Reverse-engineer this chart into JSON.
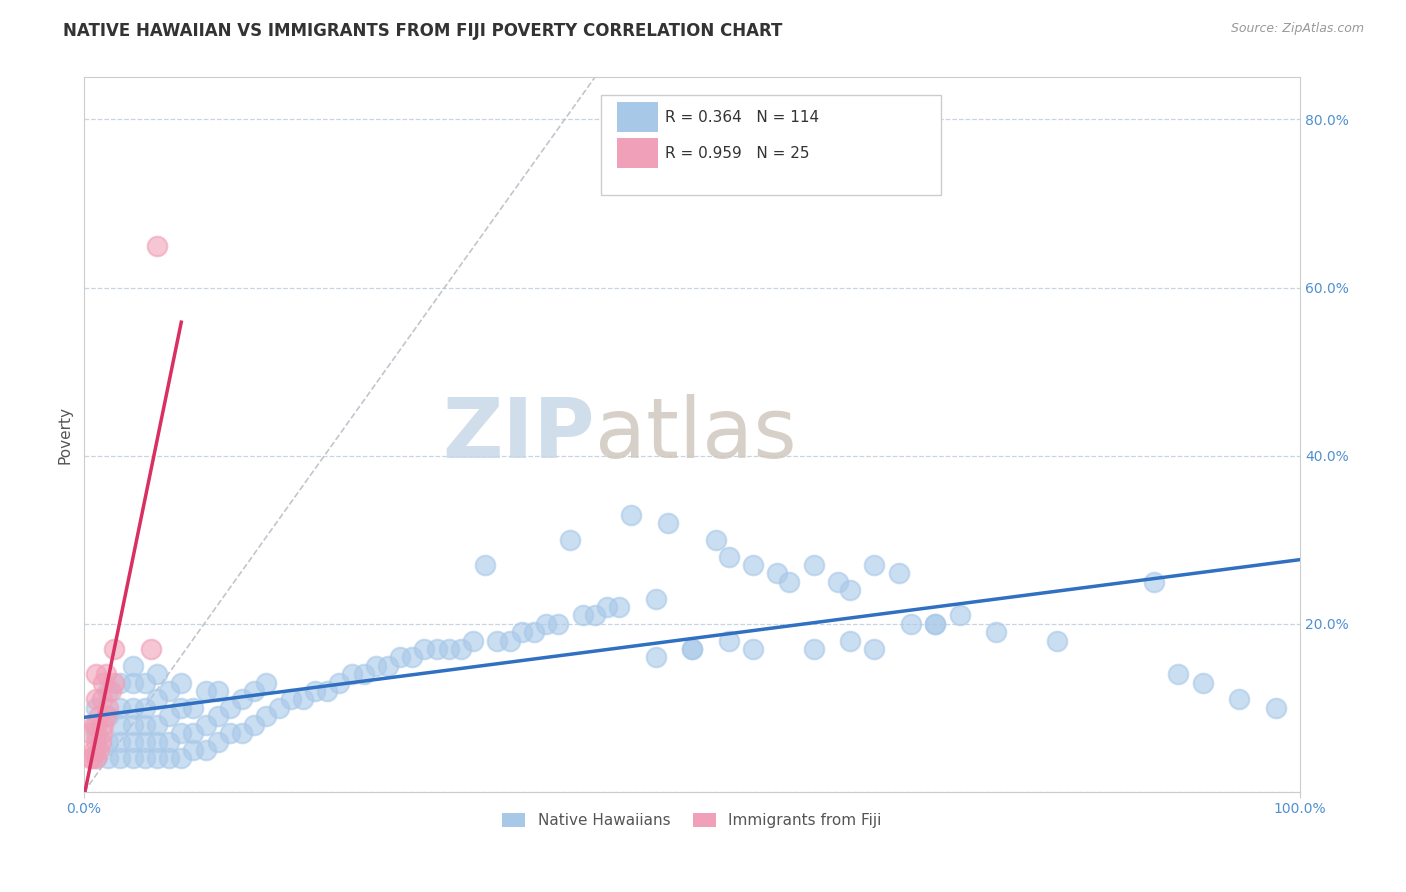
{
  "title": "NATIVE HAWAIIAN VS IMMIGRANTS FROM FIJI POVERTY CORRELATION CHART",
  "source": "Source: ZipAtlas.com",
  "ylabel": "Poverty",
  "watermark_zip": "ZIP",
  "watermark_atlas": "atlas",
  "xlim": [
    0.0,
    1.0
  ],
  "ylim": [
    0.0,
    0.85
  ],
  "xticks": [
    0.0,
    0.2,
    0.4,
    0.6,
    0.8,
    1.0
  ],
  "xtick_labels": [
    "0.0%",
    "",
    "",
    "",
    "",
    "100.0%"
  ],
  "yticks": [
    0.0,
    0.2,
    0.4,
    0.6,
    0.8
  ],
  "ytick_labels": [
    "",
    "20.0%",
    "40.0%",
    "60.0%",
    "80.0%"
  ],
  "blue_R": 0.364,
  "blue_N": 114,
  "pink_R": 0.959,
  "pink_N": 25,
  "blue_color": "#a8c8e8",
  "pink_color": "#f0a0b8",
  "blue_line_color": "#3070c0",
  "pink_line_color": "#d83060",
  "gray_dash_color": "#b0b8c0",
  "tick_color": "#5090d0",
  "legend_labels": [
    "Native Hawaiians",
    "Immigrants from Fiji"
  ],
  "background_color": "#ffffff",
  "grid_color": "#c8d4e0",
  "title_fontsize": 12,
  "axis_fontsize": 10,
  "blue_scatter_x": [
    0.01,
    0.01,
    0.01,
    0.02,
    0.02,
    0.02,
    0.02,
    0.03,
    0.03,
    0.03,
    0.03,
    0.03,
    0.04,
    0.04,
    0.04,
    0.04,
    0.04,
    0.04,
    0.05,
    0.05,
    0.05,
    0.05,
    0.05,
    0.06,
    0.06,
    0.06,
    0.06,
    0.06,
    0.07,
    0.07,
    0.07,
    0.07,
    0.08,
    0.08,
    0.08,
    0.08,
    0.09,
    0.09,
    0.09,
    0.1,
    0.1,
    0.1,
    0.11,
    0.11,
    0.11,
    0.12,
    0.12,
    0.13,
    0.13,
    0.14,
    0.14,
    0.15,
    0.15,
    0.16,
    0.17,
    0.18,
    0.19,
    0.2,
    0.21,
    0.22,
    0.23,
    0.24,
    0.25,
    0.26,
    0.27,
    0.28,
    0.29,
    0.3,
    0.31,
    0.32,
    0.33,
    0.34,
    0.35,
    0.36,
    0.37,
    0.38,
    0.39,
    0.4,
    0.41,
    0.42,
    0.43,
    0.44,
    0.45,
    0.47,
    0.48,
    0.5,
    0.52,
    0.53,
    0.55,
    0.57,
    0.58,
    0.6,
    0.62,
    0.63,
    0.65,
    0.67,
    0.7,
    0.75,
    0.8,
    0.88,
    0.9,
    0.92,
    0.95,
    0.98,
    0.47,
    0.5,
    0.53,
    0.55,
    0.6,
    0.63,
    0.65,
    0.68,
    0.7,
    0.72
  ],
  "blue_scatter_y": [
    0.04,
    0.07,
    0.1,
    0.04,
    0.06,
    0.09,
    0.12,
    0.04,
    0.06,
    0.08,
    0.1,
    0.13,
    0.04,
    0.06,
    0.08,
    0.1,
    0.13,
    0.15,
    0.04,
    0.06,
    0.08,
    0.1,
    0.13,
    0.04,
    0.06,
    0.08,
    0.11,
    0.14,
    0.04,
    0.06,
    0.09,
    0.12,
    0.04,
    0.07,
    0.1,
    0.13,
    0.05,
    0.07,
    0.1,
    0.05,
    0.08,
    0.12,
    0.06,
    0.09,
    0.12,
    0.07,
    0.1,
    0.07,
    0.11,
    0.08,
    0.12,
    0.09,
    0.13,
    0.1,
    0.11,
    0.11,
    0.12,
    0.12,
    0.13,
    0.14,
    0.14,
    0.15,
    0.15,
    0.16,
    0.16,
    0.17,
    0.17,
    0.17,
    0.17,
    0.18,
    0.27,
    0.18,
    0.18,
    0.19,
    0.19,
    0.2,
    0.2,
    0.3,
    0.21,
    0.21,
    0.22,
    0.22,
    0.33,
    0.23,
    0.32,
    0.17,
    0.3,
    0.28,
    0.27,
    0.26,
    0.25,
    0.27,
    0.25,
    0.24,
    0.27,
    0.26,
    0.2,
    0.19,
    0.18,
    0.25,
    0.14,
    0.13,
    0.11,
    0.1,
    0.16,
    0.17,
    0.18,
    0.17,
    0.17,
    0.18,
    0.17,
    0.2,
    0.2,
    0.21
  ],
  "pink_scatter_x": [
    0.005,
    0.005,
    0.007,
    0.008,
    0.008,
    0.01,
    0.01,
    0.01,
    0.01,
    0.01,
    0.012,
    0.012,
    0.014,
    0.015,
    0.015,
    0.016,
    0.016,
    0.018,
    0.018,
    0.02,
    0.022,
    0.025,
    0.025,
    0.055,
    0.06
  ],
  "pink_scatter_y": [
    0.04,
    0.07,
    0.04,
    0.05,
    0.08,
    0.04,
    0.06,
    0.08,
    0.11,
    0.14,
    0.05,
    0.09,
    0.06,
    0.07,
    0.11,
    0.08,
    0.13,
    0.09,
    0.14,
    0.1,
    0.12,
    0.13,
    0.17,
    0.17,
    0.65
  ],
  "pink_line_x0": 0.0,
  "pink_line_x1": 0.08,
  "gray_line_x0": 0.0,
  "gray_line_x1": 0.42,
  "gray_line_y0": 0.0,
  "gray_line_y1": 0.85
}
